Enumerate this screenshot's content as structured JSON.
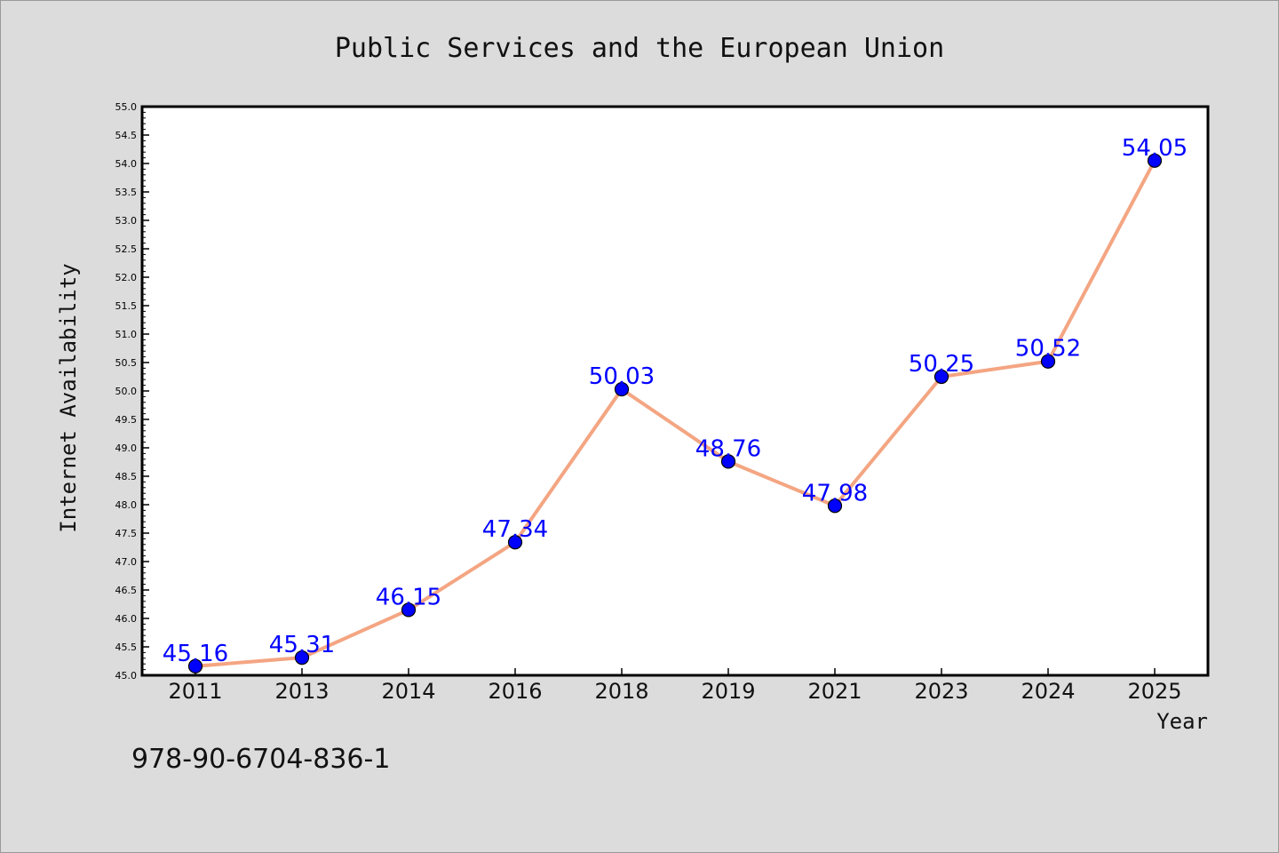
{
  "chart_data": {
    "type": "line",
    "title": "Public Services and the European Union",
    "xlabel": "Year",
    "ylabel": "Internet Availability",
    "categories": [
      "2011",
      "2013",
      "2014",
      "2016",
      "2018",
      "2019",
      "2021",
      "2023",
      "2024",
      "2025"
    ],
    "values": [
      45.16,
      45.31,
      46.15,
      47.34,
      50.03,
      48.76,
      47.98,
      50.25,
      50.52,
      54.05
    ],
    "data_labels": [
      "45.16",
      "45.31",
      "46.15",
      "47.34",
      "50.03",
      "48.76",
      "47.98",
      "50.25",
      "50.52",
      "54.05"
    ],
    "ylim": [
      45.0,
      55.0
    ],
    "y_ticks": [
      "45.0",
      "45.5",
      "46.0",
      "46.5",
      "47.0",
      "47.5",
      "48.0",
      "48.5",
      "49.0",
      "49.5",
      "50.0",
      "50.5",
      "51.0",
      "51.5",
      "52.0",
      "52.5",
      "53.0",
      "53.5",
      "54.0",
      "54.5",
      "55.0"
    ],
    "y_minor_step": 0.1,
    "grid": false,
    "legend": "none",
    "colors": {
      "line": "#f4a582",
      "marker": "#0000ff",
      "marker_edge": "#000000",
      "data_label": "#0000ff",
      "plot_background": "#ffffff",
      "figure_background": "#dcdcdc"
    }
  },
  "footer": {
    "code": "978-90-6704-836-1"
  }
}
